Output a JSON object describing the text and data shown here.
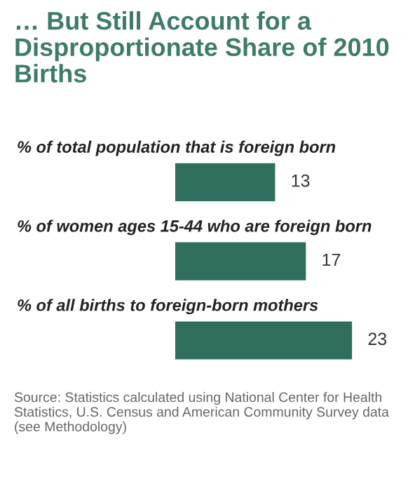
{
  "chart_data": {
    "type": "bar",
    "orientation": "horizontal",
    "title": "… But Still Account for a Disproportionate Share of 2010 Births",
    "categories": [
      "% of total population that is foreign born",
      "% of women ages 15-44 who are foreign born",
      "% of all births to foreign-born mothers"
    ],
    "values": [
      13,
      17,
      23
    ],
    "color": "#2f6e5c",
    "data_labels": true,
    "annotations": [
      "Source: Statistics calculated using National Center for Health Statistics, U.S. Census and American Community Survey data (see Methodology)"
    ]
  }
}
